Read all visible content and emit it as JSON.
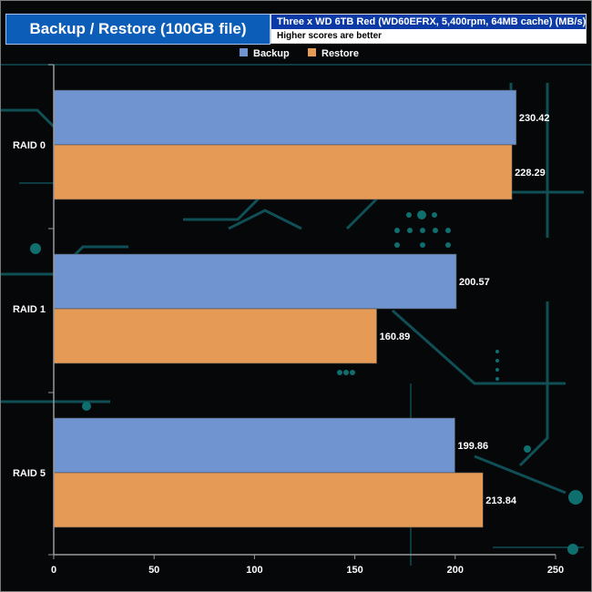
{
  "header": {
    "title": "Backup / Restore (100GB file)",
    "subtitle_line1": "Three x WD 6TB Red (WD60EFRX, 5,400rpm, 64MB cache) (MB/s)",
    "subtitle_line2": "Higher scores are better"
  },
  "chart_data": {
    "type": "bar",
    "orientation": "horizontal",
    "categories": [
      "RAID 0",
      "RAID 1",
      "RAID 5"
    ],
    "series": [
      {
        "name": "Backup",
        "color": "#7094d0",
        "values": [
          230.42,
          200.57,
          199.86
        ]
      },
      {
        "name": "Restore",
        "color": "#e59a55",
        "values": [
          228.29,
          160.89,
          213.84
        ]
      }
    ],
    "xlim": [
      0,
      250
    ],
    "xticks": [
      0,
      50,
      100,
      150,
      200,
      250
    ],
    "legend_position": "top-center",
    "grid": false
  },
  "colors": {
    "title_bg": "#0c5db8",
    "subtitle_bg": "#0b3aa6",
    "background_circuit": "#0f4f55"
  }
}
